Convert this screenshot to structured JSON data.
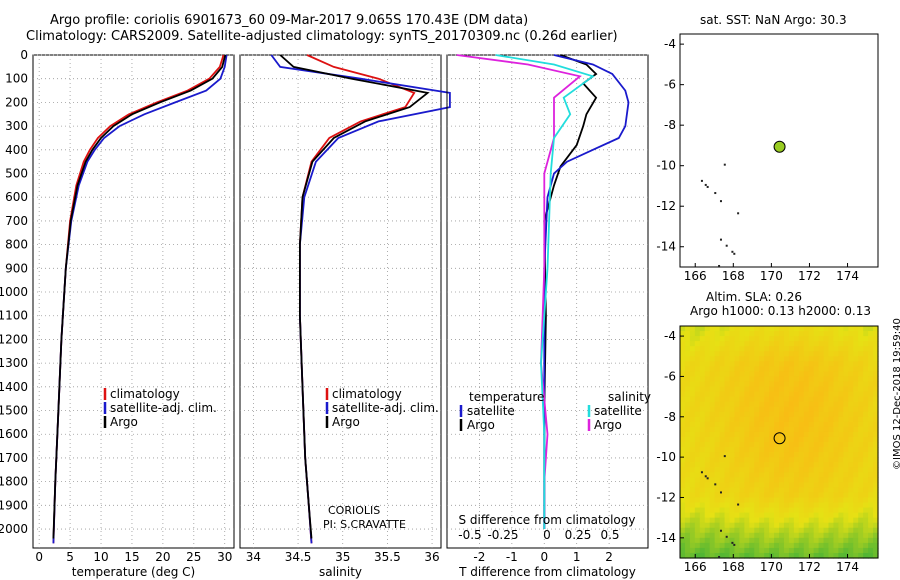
{
  "title": {
    "line1": "Argo profile: coriolis 6901673_60 09-Mar-2017 9.065S 170.43E (DM data)",
    "line2": "Climatology: CARS2009. Satellite-adjusted climatology: synTS_20170309.nc (0.26d earlier)"
  },
  "colors": {
    "climatology": "#dd1111",
    "satellite": "#1a1acc",
    "argo": "#000000",
    "t_diff": "#000000",
    "t_sat": "#1a1acc",
    "s_diff": "#dd22dd",
    "s_sat": "#22dddd",
    "marker": "#99cc22"
  },
  "credit": "©IMOS 12-Dec-2018 19:59:40",
  "chart_data": [
    {
      "id": "temperature",
      "type": "line",
      "xlabel": "temperature (deg C)",
      "xlim": [
        -1,
        31.5
      ],
      "xticks": [
        0,
        5,
        10,
        15,
        20,
        25,
        30
      ],
      "xticklabels": [
        "0",
        "5",
        "10",
        "15",
        "20",
        "25",
        "30"
      ],
      "ylim": [
        2080,
        0
      ],
      "yticks": [
        0,
        100,
        200,
        300,
        400,
        500,
        600,
        700,
        800,
        900,
        1000,
        1100,
        1200,
        1300,
        1400,
        1500,
        1600,
        1700,
        1800,
        1900,
        2000
      ],
      "legend": [
        "climatology",
        "satellite-adj. clim.",
        "Argo"
      ],
      "series": [
        {
          "name": "climatology",
          "color": "climatology",
          "x": [
            29.8,
            29.2,
            27.5,
            24,
            19,
            14.5,
            11.5,
            9.5,
            8.2,
            7.2,
            6,
            5,
            4.3,
            3.6,
            3.1,
            2.6,
            2.3
          ],
          "y": [
            0,
            50,
            100,
            150,
            200,
            250,
            300,
            350,
            400,
            450,
            550,
            700,
            900,
            1200,
            1500,
            1800,
            2060
          ]
        },
        {
          "name": "satellite-adj. clim.",
          "color": "satellite",
          "x": [
            30.3,
            30,
            29.3,
            27,
            22,
            17,
            13,
            10.5,
            9,
            7.8,
            6.4,
            5.2,
            4.3,
            3.6,
            3.1,
            2.6,
            2.3
          ],
          "y": [
            0,
            50,
            100,
            150,
            200,
            250,
            300,
            350,
            400,
            450,
            550,
            700,
            900,
            1200,
            1500,
            1800,
            2060
          ]
        },
        {
          "name": "Argo",
          "color": "argo",
          "x": [
            30.1,
            29.6,
            28,
            24.5,
            19.5,
            15,
            12,
            10,
            8.6,
            7.5,
            6.2,
            5.1,
            4.3,
            3.6,
            3.1,
            2.6,
            2.3
          ],
          "y": [
            0,
            50,
            100,
            150,
            200,
            250,
            300,
            350,
            400,
            450,
            550,
            700,
            900,
            1200,
            1500,
            1800,
            2040
          ]
        }
      ]
    },
    {
      "id": "salinity",
      "type": "line",
      "xlabel": "salinity",
      "xlim": [
        33.85,
        36.1
      ],
      "xticks": [
        34,
        34.5,
        35,
        35.5,
        36
      ],
      "xticklabels": [
        "34",
        "34.5",
        "35",
        "35.5",
        "36"
      ],
      "ylim": [
        2080,
        0
      ],
      "legend": [
        "climatology",
        "satellite-adj. clim.",
        "Argo"
      ],
      "annotation": [
        "CORIOLIS",
        "PI: S.CRAVATTE"
      ],
      "series": [
        {
          "name": "climatology",
          "color": "climatology",
          "x": [
            34.6,
            34.9,
            35.4,
            35.8,
            35.7,
            35.2,
            34.85,
            34.65,
            34.55,
            34.52,
            34.52,
            34.55,
            34.58,
            34.62,
            34.65
          ],
          "y": [
            0,
            50,
            100,
            160,
            220,
            280,
            350,
            450,
            600,
            800,
            1100,
            1400,
            1700,
            1900,
            2060
          ]
        },
        {
          "name": "satellite-adj. clim.",
          "color": "satellite",
          "x": [
            34.2,
            34.3,
            35.2,
            36.2,
            36.2,
            35.4,
            34.95,
            34.7,
            34.57,
            34.52,
            34.52,
            34.55,
            34.58,
            34.62,
            34.65
          ],
          "y": [
            0,
            50,
            100,
            160,
            220,
            280,
            350,
            450,
            600,
            800,
            1100,
            1400,
            1700,
            1900,
            2060
          ]
        },
        {
          "name": "Argo",
          "color": "argo",
          "x": [
            34.3,
            34.45,
            35.1,
            35.95,
            35.75,
            35.25,
            34.9,
            34.66,
            34.55,
            34.52,
            34.52,
            34.55,
            34.58,
            34.62,
            34.65
          ],
          "y": [
            0,
            50,
            100,
            160,
            220,
            280,
            350,
            450,
            600,
            800,
            1100,
            1400,
            1700,
            1900,
            2040
          ]
        }
      ]
    },
    {
      "id": "difference",
      "type": "line",
      "xlabel": "T difference from climatology",
      "xlabel_top": "S difference from climatology",
      "xlim": [
        -3,
        3.2
      ],
      "xticks": [
        -2,
        -1,
        0,
        1,
        2
      ],
      "xticklabels": [
        "-2",
        "-1",
        "0",
        "1",
        "2"
      ],
      "sticks": [
        -0.5,
        -0.25,
        0,
        0.25,
        0.5
      ],
      "sticklabels": [
        "-0.5",
        "-0.25",
        "0",
        "0.25",
        "0.5"
      ],
      "ylim": [
        2080,
        0
      ],
      "legend_left_title": "temperature",
      "legend_right_title": "salinity",
      "legend_left": [
        "satellite",
        "Argo"
      ],
      "legend_right": [
        "satellite",
        "Argo"
      ],
      "series": [
        {
          "name": "T Argo",
          "color": "t_diff",
          "x": [
            0.5,
            1.3,
            1.6,
            1.2,
            1.6,
            1.3,
            1.2,
            1.0,
            0.5,
            0.3,
            0,
            0.05,
            0,
            0
          ],
          "y": [
            0,
            40,
            80,
            120,
            180,
            250,
            300,
            380,
            470,
            550,
            700,
            1100,
            1500,
            2000
          ]
        },
        {
          "name": "T satellite",
          "color": "t_sat",
          "x": [
            0.3,
            1.5,
            2.1,
            2.5,
            2.6,
            2.5,
            2.3,
            1.5,
            0.7,
            0.3,
            0.1,
            0,
            0,
            0
          ],
          "y": [
            0,
            40,
            80,
            150,
            200,
            300,
            350,
            400,
            450,
            500,
            600,
            900,
            1400,
            2000
          ]
        },
        {
          "name": "S Argo",
          "color": "s_diff",
          "x": [
            -2.7,
            -0.5,
            1.1,
            0.3,
            0.3,
            0.3,
            0,
            0,
            -0.1,
            0.1,
            0,
            0
          ],
          "y": [
            0,
            40,
            90,
            180,
            250,
            350,
            500,
            900,
            1300,
            1600,
            1800,
            2000
          ]
        },
        {
          "name": "S satellite",
          "color": "s_sat",
          "x": [
            -1.5,
            0.3,
            1.5,
            0.6,
            0.8,
            0.3,
            0.2,
            0.1,
            0,
            -0.1,
            0,
            0
          ],
          "y": [
            0,
            40,
            90,
            180,
            250,
            350,
            500,
            900,
            1100,
            1300,
            1600,
            2000
          ]
        }
      ]
    },
    {
      "id": "sst_map",
      "type": "scatter",
      "title": "sat. SST: NaN Argo: 30.3",
      "xlim": [
        165.2,
        175.6
      ],
      "ylim": [
        -15,
        -3.5
      ],
      "xticks": [
        166,
        168,
        170,
        172,
        174
      ],
      "xticklabels": [
        "166",
        "168",
        "170",
        "172",
        "174"
      ],
      "yticks": [
        -4,
        -6,
        -8,
        -10,
        -12,
        -14
      ],
      "yticklabels": [
        "-4",
        "-6",
        "-8",
        "-10",
        "-12",
        "-14"
      ],
      "point": {
        "lon": 170.43,
        "lat": -9.065
      }
    },
    {
      "id": "sla_map",
      "type": "heatmap",
      "title1": "Altim. SLA: 0.26",
      "title2": "Argo h1000: 0.13 h2000: 0.13",
      "xlim": [
        165.2,
        175.6
      ],
      "ylim": [
        -15,
        -3.5
      ],
      "xticks": [
        166,
        168,
        170,
        172,
        174
      ],
      "xticklabels": [
        "166",
        "168",
        "170",
        "172",
        "174"
      ],
      "yticks": [
        -4,
        -6,
        -8,
        -10,
        -12,
        -14
      ],
      "yticklabels": [
        "-4",
        "-6",
        "-8",
        "-10",
        "-12",
        "-14"
      ],
      "point": {
        "lon": 170.43,
        "lat": -9.065
      }
    }
  ]
}
